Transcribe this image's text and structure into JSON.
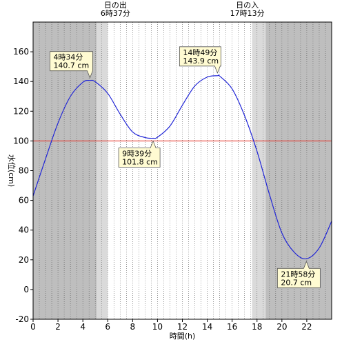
{
  "chart_data": {
    "type": "line",
    "xlabel": "時間(h)",
    "ylabel": "水位(cm)",
    "xlim": [
      0,
      24
    ],
    "ylim": [
      -20,
      180
    ],
    "x_ticks": [
      0,
      2,
      4,
      6,
      8,
      10,
      12,
      14,
      16,
      18,
      20,
      22
    ],
    "y_ticks": [
      -20,
      0,
      20,
      40,
      60,
      80,
      100,
      120,
      140,
      160
    ],
    "reference_line": {
      "y": 100,
      "color": "#e8281e"
    },
    "line_color": "#1f24d6",
    "series": [
      {
        "x": [
          0,
          1,
          2,
          3,
          4,
          4.57,
          5,
          6,
          7,
          8,
          9,
          9.65,
          10,
          11,
          12,
          13,
          14,
          14.82,
          15,
          16,
          17,
          18,
          19,
          20,
          21,
          21.97,
          23,
          24
        ],
        "y": [
          63,
          88,
          112,
          130,
          139.5,
          140.7,
          139.8,
          132,
          118,
          106,
          102.3,
          101.8,
          102.5,
          110,
          124,
          137,
          143,
          143.9,
          143.6,
          135,
          117,
          93,
          64,
          38,
          25,
          20.7,
          28,
          46
        ]
      }
    ],
    "annotations": [
      {
        "x": 4.57,
        "y": 140.7,
        "time": "4時34分",
        "value": "140.7 cm"
      },
      {
        "x": 9.65,
        "y": 101.8,
        "time": "9時39分",
        "value": "101.8 cm"
      },
      {
        "x": 14.82,
        "y": 143.9,
        "time": "14時49分",
        "value": "143.9 cm"
      },
      {
        "x": 21.97,
        "y": 20.7,
        "time": "21時58分",
        "value": "20.7 cm"
      }
    ],
    "sunrise": {
      "label": "日の出",
      "time": "6時37分",
      "hour": 6.62
    },
    "sunset": {
      "label": "日の入",
      "time": "17時13分",
      "hour": 17.22
    },
    "night_shade": [
      [
        0,
        5.1
      ],
      [
        18.7,
        24
      ]
    ],
    "twilight_shade": [
      [
        5.1,
        6.0
      ],
      [
        17.6,
        18.7
      ]
    ],
    "colors": {
      "night": "#bebebe",
      "twilight": "#dadada",
      "day": "#ffffff",
      "callout_bg": "#fffbd2"
    }
  }
}
